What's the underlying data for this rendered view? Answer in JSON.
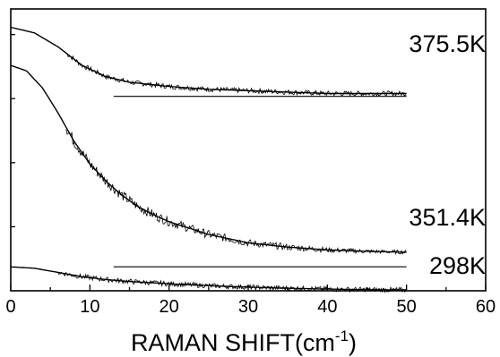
{
  "chart_data": {
    "type": "line",
    "xlabel": "RAMAN SHIFT(cm",
    "xlabel_sup": "-1",
    "xlabel_close": ")",
    "ylabel": "",
    "xlim": [
      0,
      60
    ],
    "x_ticks": [
      "0",
      "10",
      "20",
      "30",
      "40",
      "50",
      "60"
    ],
    "y_axis_unlabeled": true,
    "grid": false,
    "series": [
      {
        "name": "375.5K",
        "fit_curve": {
          "x": [
            0,
            3,
            6,
            9,
            12,
            15,
            20,
            25,
            30,
            35,
            40,
            45,
            50
          ],
          "y": [
            0.935,
            0.915,
            0.865,
            0.8,
            0.76,
            0.74,
            0.725,
            0.715,
            0.71,
            0.705,
            0.7,
            0.7,
            0.7
          ]
        },
        "baseline": {
          "x": [
            13,
            50
          ],
          "y": 0.69
        },
        "data_x_range": [
          7,
          50
        ]
      },
      {
        "name": "351.4K",
        "fit_curve": {
          "x": [
            0,
            2,
            4,
            6,
            8,
            10,
            12,
            14,
            16,
            18,
            20,
            25,
            30,
            35,
            40,
            45,
            50
          ],
          "y": [
            0.8,
            0.78,
            0.72,
            0.63,
            0.53,
            0.45,
            0.39,
            0.34,
            0.3,
            0.27,
            0.245,
            0.2,
            0.17,
            0.155,
            0.145,
            0.14,
            0.137
          ]
        },
        "baseline": {
          "x": [
            13,
            50
          ],
          "y": 0.085
        },
        "data_x_range": [
          7,
          50
        ]
      },
      {
        "name": "298K",
        "fit_curve": {
          "x": [
            0,
            3,
            6,
            9,
            12,
            15,
            20,
            25,
            30,
            35,
            40,
            45,
            50
          ],
          "y": [
            0.085,
            0.08,
            0.065,
            0.05,
            0.04,
            0.033,
            0.025,
            0.018,
            0.013,
            0.009,
            0.006,
            0.004,
            0.003
          ]
        },
        "baseline": null,
        "data_x_range": [
          6,
          50
        ]
      }
    ]
  }
}
